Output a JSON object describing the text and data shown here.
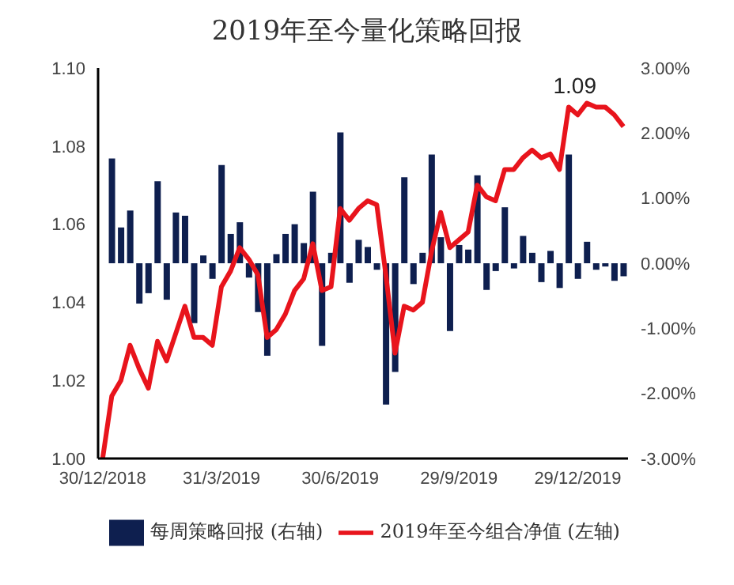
{
  "chart_data": {
    "type": "bar",
    "title": "2019年至今量化策略回报",
    "categories": [
      "30/12/2018",
      null,
      null,
      null,
      null,
      null,
      null,
      null,
      null,
      null,
      null,
      null,
      null,
      "31/3/2019",
      null,
      null,
      null,
      null,
      null,
      null,
      null,
      null,
      null,
      null,
      null,
      null,
      "30/6/2019",
      null,
      null,
      null,
      null,
      null,
      null,
      null,
      null,
      null,
      null,
      null,
      null,
      "29/9/2019",
      null,
      null,
      null,
      null,
      null,
      null,
      null,
      null,
      null,
      null,
      null,
      null,
      "29/12/2019",
      null,
      null,
      null,
      null,
      null
    ],
    "series": [
      {
        "name": "每周策略回报 (右轴)",
        "axis": "y2",
        "color": "#0e1f4f",
        "values": [
          null,
          1.61,
          0.55,
          0.81,
          -0.62,
          -0.46,
          1.26,
          -0.56,
          0.78,
          0.73,
          -0.92,
          0.12,
          -0.24,
          1.51,
          0.45,
          0.63,
          -0.22,
          -0.75,
          -1.42,
          0.14,
          0.45,
          0.6,
          0.31,
          1.1,
          -1.27,
          0.16,
          2.01,
          -0.3,
          0.36,
          0.25,
          -0.1,
          -2.17,
          -1.67,
          1.32,
          -0.32,
          0.16,
          1.67,
          0.4,
          -1.04,
          0.28,
          0.21,
          1.35,
          -0.41,
          -0.12,
          0.86,
          -0.08,
          0.42,
          0.16,
          -0.29,
          0.19,
          -0.38,
          1.67,
          -0.24,
          0.33,
          -0.1,
          -0.05,
          -0.27,
          -0.2
        ]
      },
      {
        "name": "2019年至今组合净值 (左轴)",
        "type": "line",
        "color": "#e8141c",
        "values": [
          1.0,
          1.016,
          1.02,
          1.029,
          1.023,
          1.018,
          1.03,
          1.025,
          1.032,
          1.039,
          1.031,
          1.031,
          1.029,
          1.044,
          1.048,
          1.054,
          1.051,
          1.047,
          1.031,
          1.033,
          1.037,
          1.043,
          1.046,
          1.055,
          1.043,
          1.044,
          1.064,
          1.061,
          1.064,
          1.066,
          1.065,
          1.047,
          1.027,
          1.039,
          1.038,
          1.04,
          1.053,
          1.063,
          1.054,
          1.056,
          1.058,
          1.07,
          1.067,
          1.066,
          1.074,
          1.074,
          1.077,
          1.079,
          1.077,
          1.078,
          1.074,
          1.09,
          1.088,
          1.091,
          1.09,
          1.09,
          1.088,
          1.085
        ]
      }
    ],
    "ylim": [
      1.0,
      1.1
    ],
    "yticks": [
      {
        "value": 1.0,
        "label": "1.00"
      },
      {
        "value": 1.02,
        "label": "1.02"
      },
      {
        "value": 1.04,
        "label": "1.04"
      },
      {
        "value": 1.06,
        "label": "1.06"
      },
      {
        "value": 1.08,
        "label": "1.08"
      },
      {
        "value": 1.1,
        "label": "1.10"
      }
    ],
    "y2lim": [
      -3,
      3
    ],
    "y2ticks": [
      {
        "value": -3,
        "label": "-3.00%"
      },
      {
        "value": -2,
        "label": "-2.00%"
      },
      {
        "value": -1,
        "label": "-1.00%"
      },
      {
        "value": 0,
        "label": "0.00%"
      },
      {
        "value": 1,
        "label": "1.00%"
      },
      {
        "value": 2,
        "label": "2.00%"
      },
      {
        "value": 3,
        "label": "3.00%"
      }
    ],
    "annotations": [
      "1.09"
    ],
    "legend": "bottom",
    "grid": false,
    "marker": "none",
    "line_style": "solid"
  }
}
